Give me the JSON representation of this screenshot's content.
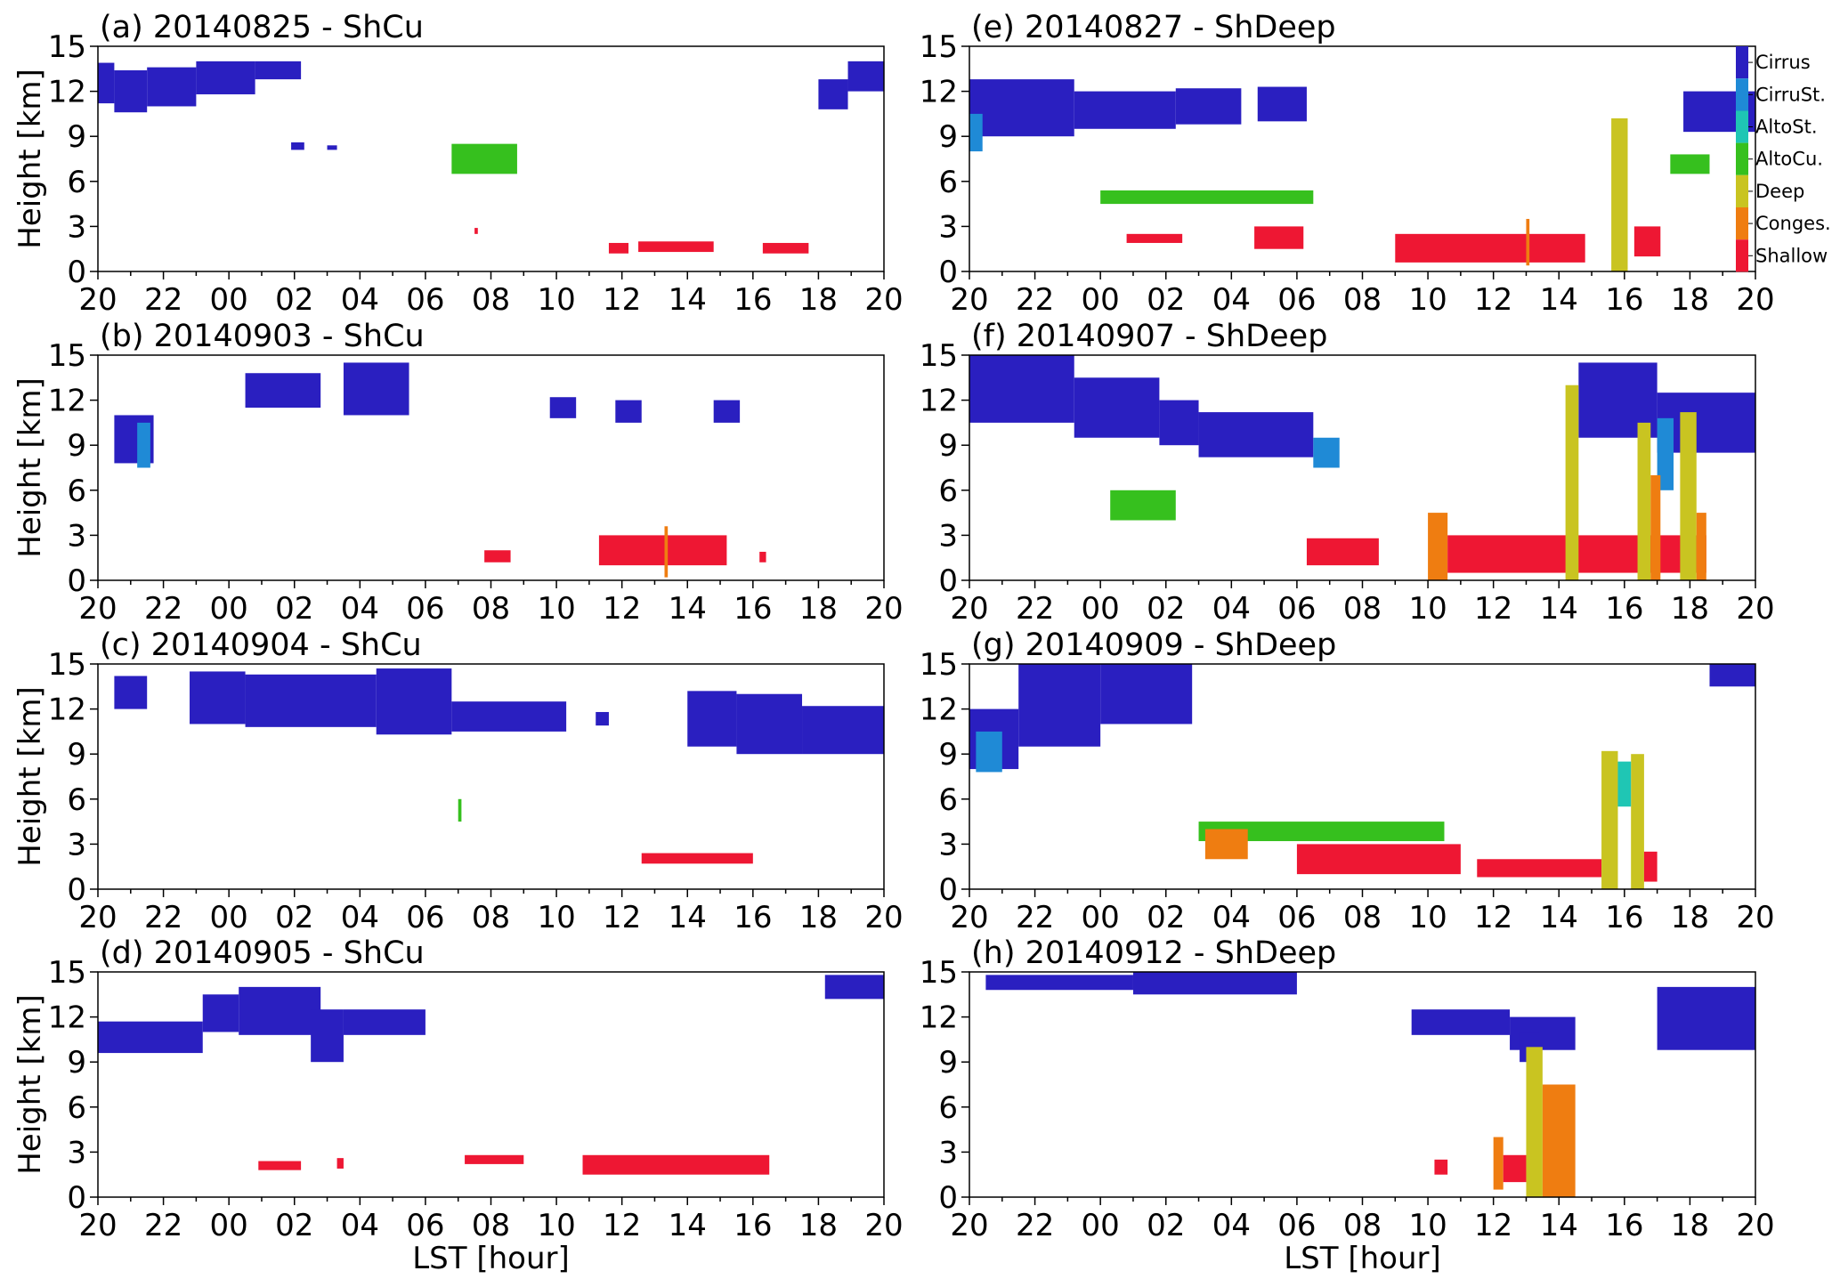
{
  "figure": {
    "ylabel": "Height [km]",
    "xlabel": "LST [hour]",
    "legend_position": "right of panel (e)"
  },
  "chart_data": [
    {
      "type": "heatmap",
      "id": "a",
      "title": "(a) 20140825 - ShCu",
      "ylabel": "Height [km]",
      "xlabel": "",
      "ylim": [
        0,
        15
      ],
      "yticks": [
        0,
        3,
        6,
        9,
        12,
        15
      ],
      "xlim": [
        0,
        24
      ],
      "xticks": [
        "20",
        "22",
        "00",
        "02",
        "04",
        "06",
        "08",
        "10",
        "12",
        "14",
        "16",
        "18",
        "20"
      ],
      "grid": false,
      "cells": [
        {
          "class": "Cirrus",
          "t0": 0.0,
          "t1": 0.5,
          "z0": 11.2,
          "z1": 13.9
        },
        {
          "class": "Cirrus",
          "t0": 0.5,
          "t1": 1.5,
          "z0": 10.6,
          "z1": 13.4
        },
        {
          "class": "Cirrus",
          "t0": 1.5,
          "t1": 3.0,
          "z0": 11.0,
          "z1": 13.6
        },
        {
          "class": "Cirrus",
          "t0": 3.0,
          "t1": 4.8,
          "z0": 11.8,
          "z1": 14.0
        },
        {
          "class": "Cirrus",
          "t0": 4.8,
          "t1": 6.2,
          "z0": 12.8,
          "z1": 14.0
        },
        {
          "class": "Cirrus",
          "t0": 5.9,
          "t1": 6.3,
          "z0": 8.1,
          "z1": 8.6
        },
        {
          "class": "Cirrus",
          "t0": 7.0,
          "t1": 7.3,
          "z0": 8.1,
          "z1": 8.4
        },
        {
          "class": "Cirrus",
          "t0": 22.0,
          "t1": 22.9,
          "z0": 10.8,
          "z1": 12.8
        },
        {
          "class": "Cirrus",
          "t0": 22.9,
          "t1": 24.0,
          "z0": 12.0,
          "z1": 14.0
        },
        {
          "class": "AltoCu.",
          "t0": 10.8,
          "t1": 12.8,
          "z0": 6.5,
          "z1": 8.5
        },
        {
          "class": "Shallow",
          "t0": 15.6,
          "t1": 16.2,
          "z0": 1.2,
          "z1": 1.9
        },
        {
          "class": "Shallow",
          "t0": 16.5,
          "t1": 18.8,
          "z0": 1.3,
          "z1": 2.0
        },
        {
          "class": "Shallow",
          "t0": 20.3,
          "t1": 21.7,
          "z0": 1.2,
          "z1": 1.9
        },
        {
          "class": "Shallow",
          "t0": 11.5,
          "t1": 11.6,
          "z0": 2.5,
          "z1": 2.9
        }
      ]
    },
    {
      "type": "heatmap",
      "id": "b",
      "title": "(b) 20140903 - ShCu",
      "ylabel": "Height [km]",
      "xlabel": "",
      "ylim": [
        0,
        15
      ],
      "yticks": [
        0,
        3,
        6,
        9,
        12,
        15
      ],
      "xlim": [
        0,
        24
      ],
      "xticks": [
        "20",
        "22",
        "00",
        "02",
        "04",
        "06",
        "08",
        "10",
        "12",
        "14",
        "16",
        "18",
        "20"
      ],
      "grid": false,
      "cells": [
        {
          "class": "Cirrus",
          "t0": 0.5,
          "t1": 1.7,
          "z0": 7.8,
          "z1": 11.0
        },
        {
          "class": "CirruSt.",
          "t0": 1.2,
          "t1": 1.6,
          "z0": 7.5,
          "z1": 10.5
        },
        {
          "class": "Cirrus",
          "t0": 4.5,
          "t1": 6.8,
          "z0": 11.5,
          "z1": 13.8
        },
        {
          "class": "Cirrus",
          "t0": 7.5,
          "t1": 9.5,
          "z0": 11.0,
          "z1": 14.5
        },
        {
          "class": "Cirrus",
          "t0": 13.8,
          "t1": 14.6,
          "z0": 10.8,
          "z1": 12.2
        },
        {
          "class": "Cirrus",
          "t0": 15.8,
          "t1": 16.6,
          "z0": 10.5,
          "z1": 12.0
        },
        {
          "class": "Cirrus",
          "t0": 18.8,
          "t1": 19.6,
          "z0": 10.5,
          "z1": 12.0
        },
        {
          "class": "Shallow",
          "t0": 11.8,
          "t1": 12.6,
          "z0": 1.2,
          "z1": 2.0
        },
        {
          "class": "Shallow",
          "t0": 15.3,
          "t1": 19.2,
          "z0": 1.0,
          "z1": 3.0
        },
        {
          "class": "Conges.",
          "t0": 17.3,
          "t1": 17.4,
          "z0": 0.2,
          "z1": 3.6
        },
        {
          "class": "Shallow",
          "t0": 20.2,
          "t1": 20.4,
          "z0": 1.2,
          "z1": 1.9
        }
      ]
    },
    {
      "type": "heatmap",
      "id": "c",
      "title": "(c) 20140904 - ShCu",
      "ylabel": "Height [km]",
      "xlabel": "",
      "ylim": [
        0,
        15
      ],
      "yticks": [
        0,
        3,
        6,
        9,
        12,
        15
      ],
      "xlim": [
        0,
        24
      ],
      "xticks": [
        "20",
        "22",
        "00",
        "02",
        "04",
        "06",
        "08",
        "10",
        "12",
        "14",
        "16",
        "18",
        "20"
      ],
      "grid": false,
      "cells": [
        {
          "class": "Cirrus",
          "t0": 0.5,
          "t1": 1.5,
          "z0": 12.0,
          "z1": 14.2
        },
        {
          "class": "Cirrus",
          "t0": 2.8,
          "t1": 4.5,
          "z0": 11.0,
          "z1": 14.5
        },
        {
          "class": "Cirrus",
          "t0": 4.5,
          "t1": 8.5,
          "z0": 10.8,
          "z1": 14.3
        },
        {
          "class": "Cirrus",
          "t0": 8.5,
          "t1": 10.8,
          "z0": 10.3,
          "z1": 14.7
        },
        {
          "class": "Cirrus",
          "t0": 10.8,
          "t1": 14.3,
          "z0": 10.5,
          "z1": 12.5
        },
        {
          "class": "Cirrus",
          "t0": 15.2,
          "t1": 15.6,
          "z0": 10.9,
          "z1": 11.8
        },
        {
          "class": "Cirrus",
          "t0": 18.0,
          "t1": 19.5,
          "z0": 9.5,
          "z1": 13.2
        },
        {
          "class": "Cirrus",
          "t0": 19.5,
          "t1": 21.5,
          "z0": 9.0,
          "z1": 13.0
        },
        {
          "class": "Cirrus",
          "t0": 21.5,
          "t1": 24.0,
          "z0": 9.0,
          "z1": 12.2
        },
        {
          "class": "Shallow",
          "t0": 16.6,
          "t1": 20.0,
          "z0": 1.7,
          "z1": 2.4
        },
        {
          "class": "AltoCu.",
          "t0": 11.0,
          "t1": 11.1,
          "z0": 4.5,
          "z1": 6.0
        }
      ]
    },
    {
      "type": "heatmap",
      "id": "d",
      "title": "(d) 20140905 - ShCu",
      "ylabel": "Height [km]",
      "xlabel": "LST [hour]",
      "ylim": [
        0,
        15
      ],
      "yticks": [
        0,
        3,
        6,
        9,
        12,
        15
      ],
      "xlim": [
        0,
        24
      ],
      "xticks": [
        "20",
        "22",
        "00",
        "02",
        "04",
        "06",
        "08",
        "10",
        "12",
        "14",
        "16",
        "18",
        "20"
      ],
      "grid": false,
      "cells": [
        {
          "class": "Cirrus",
          "t0": 0.0,
          "t1": 3.2,
          "z0": 9.6,
          "z1": 11.7
        },
        {
          "class": "Cirrus",
          "t0": 3.2,
          "t1": 4.3,
          "z0": 11.0,
          "z1": 13.5
        },
        {
          "class": "Cirrus",
          "t0": 4.3,
          "t1": 6.8,
          "z0": 10.8,
          "z1": 14.0
        },
        {
          "class": "Cirrus",
          "t0": 6.5,
          "t1": 7.5,
          "z0": 9.0,
          "z1": 12.5
        },
        {
          "class": "Cirrus",
          "t0": 7.5,
          "t1": 10.0,
          "z0": 10.8,
          "z1": 12.5
        },
        {
          "class": "Cirrus",
          "t0": 22.2,
          "t1": 24.0,
          "z0": 13.2,
          "z1": 14.8
        },
        {
          "class": "Shallow",
          "t0": 4.9,
          "t1": 6.2,
          "z0": 1.8,
          "z1": 2.4
        },
        {
          "class": "Shallow",
          "t0": 7.3,
          "t1": 7.5,
          "z0": 1.9,
          "z1": 2.6
        },
        {
          "class": "Shallow",
          "t0": 11.2,
          "t1": 13.0,
          "z0": 2.2,
          "z1": 2.8
        },
        {
          "class": "Shallow",
          "t0": 14.8,
          "t1": 20.5,
          "z0": 1.5,
          "z1": 2.8
        }
      ]
    },
    {
      "type": "heatmap",
      "id": "e",
      "title": "(e) 20140827 - ShDeep",
      "ylabel": "",
      "xlabel": "",
      "ylim": [
        0,
        15
      ],
      "yticks": [
        0,
        3,
        6,
        9,
        12,
        15
      ],
      "xlim": [
        0,
        24
      ],
      "xticks": [
        "20",
        "22",
        "00",
        "02",
        "04",
        "06",
        "08",
        "10",
        "12",
        "14",
        "16",
        "18",
        "20"
      ],
      "grid": false,
      "legend": [
        "Cirrus",
        "CirruSt.",
        "AltoSt.",
        "AltoCu.",
        "Deep",
        "Conges.",
        "Shallow"
      ],
      "cells": [
        {
          "class": "Cirrus",
          "t0": 0.0,
          "t1": 3.2,
          "z0": 9.0,
          "z1": 12.8
        },
        {
          "class": "CirruSt.",
          "t0": 0.0,
          "t1": 0.4,
          "z0": 8.0,
          "z1": 10.5
        },
        {
          "class": "Cirrus",
          "t0": 3.2,
          "t1": 6.3,
          "z0": 9.5,
          "z1": 12.0
        },
        {
          "class": "Cirrus",
          "t0": 6.3,
          "t1": 8.3,
          "z0": 9.8,
          "z1": 12.2
        },
        {
          "class": "Cirrus",
          "t0": 8.8,
          "t1": 10.3,
          "z0": 10.0,
          "z1": 12.3
        },
        {
          "class": "Cirrus",
          "t0": 21.8,
          "t1": 24.0,
          "z0": 9.3,
          "z1": 12.0
        },
        {
          "class": "AltoCu.",
          "t0": 4.0,
          "t1": 10.5,
          "z0": 4.5,
          "z1": 5.4
        },
        {
          "class": "AltoCu.",
          "t0": 21.4,
          "t1": 22.6,
          "z0": 6.5,
          "z1": 7.8
        },
        {
          "class": "Shallow",
          "t0": 4.8,
          "t1": 6.5,
          "z0": 1.9,
          "z1": 2.5
        },
        {
          "class": "Shallow",
          "t0": 8.7,
          "t1": 10.2,
          "z0": 1.5,
          "z1": 3.0
        },
        {
          "class": "Shallow",
          "t0": 13.0,
          "t1": 18.8,
          "z0": 0.6,
          "z1": 2.5
        },
        {
          "class": "Conges.",
          "t0": 17.0,
          "t1": 17.1,
          "z0": 0.4,
          "z1": 3.5
        },
        {
          "class": "Deep",
          "t0": 19.6,
          "t1": 20.1,
          "z0": 0.0,
          "z1": 10.2
        },
        {
          "class": "Shallow",
          "t0": 20.3,
          "t1": 21.1,
          "z0": 1.0,
          "z1": 3.0
        }
      ]
    },
    {
      "type": "heatmap",
      "id": "f",
      "title": "(f) 20140907 - ShDeep",
      "ylabel": "",
      "xlabel": "",
      "ylim": [
        0,
        15
      ],
      "yticks": [
        0,
        3,
        6,
        9,
        12,
        15
      ],
      "xlim": [
        0,
        24
      ],
      "xticks": [
        "20",
        "22",
        "00",
        "02",
        "04",
        "06",
        "08",
        "10",
        "12",
        "14",
        "16",
        "18",
        "20"
      ],
      "grid": false,
      "cells": [
        {
          "class": "Cirrus",
          "t0": 0.0,
          "t1": 3.2,
          "z0": 10.5,
          "z1": 15.0
        },
        {
          "class": "Cirrus",
          "t0": 3.2,
          "t1": 5.8,
          "z0": 9.5,
          "z1": 13.5
        },
        {
          "class": "Cirrus",
          "t0": 5.8,
          "t1": 7.0,
          "z0": 9.0,
          "z1": 12.0
        },
        {
          "class": "Cirrus",
          "t0": 7.0,
          "t1": 10.5,
          "z0": 8.2,
          "z1": 11.2
        },
        {
          "class": "CirruSt.",
          "t0": 10.5,
          "t1": 11.3,
          "z0": 7.5,
          "z1": 9.5
        },
        {
          "class": "Cirrus",
          "t0": 18.6,
          "t1": 21.0,
          "z0": 9.5,
          "z1": 14.5
        },
        {
          "class": "Cirrus",
          "t0": 21.0,
          "t1": 24.0,
          "z0": 8.5,
          "z1": 12.5
        },
        {
          "class": "CirruSt.",
          "t0": 21.0,
          "t1": 21.5,
          "z0": 6.0,
          "z1": 10.8
        },
        {
          "class": "AltoCu.",
          "t0": 4.3,
          "t1": 6.3,
          "z0": 4.0,
          "z1": 6.0
        },
        {
          "class": "Shallow",
          "t0": 10.3,
          "t1": 12.5,
          "z0": 1.0,
          "z1": 2.8
        },
        {
          "class": "Conges.",
          "t0": 14.0,
          "t1": 14.6,
          "z0": 0.0,
          "z1": 4.5
        },
        {
          "class": "Shallow",
          "t0": 14.6,
          "t1": 22.5,
          "z0": 0.5,
          "z1": 3.0
        },
        {
          "class": "Deep",
          "t0": 18.2,
          "t1": 18.6,
          "z0": 0.0,
          "z1": 13.0
        },
        {
          "class": "Deep",
          "t0": 20.4,
          "t1": 20.8,
          "z0": 0.0,
          "z1": 10.5
        },
        {
          "class": "Conges.",
          "t0": 20.8,
          "t1": 21.1,
          "z0": 0.0,
          "z1": 7.0
        },
        {
          "class": "Deep",
          "t0": 21.7,
          "t1": 22.2,
          "z0": 0.0,
          "z1": 11.2
        },
        {
          "class": "Conges.",
          "t0": 22.2,
          "t1": 22.5,
          "z0": 0.0,
          "z1": 4.5
        }
      ]
    },
    {
      "type": "heatmap",
      "id": "g",
      "title": "(g) 20140909 - ShDeep",
      "ylabel": "",
      "xlabel": "",
      "ylim": [
        0,
        15
      ],
      "yticks": [
        0,
        3,
        6,
        9,
        12,
        15
      ],
      "xlim": [
        0,
        24
      ],
      "xticks": [
        "20",
        "22",
        "00",
        "02",
        "04",
        "06",
        "08",
        "10",
        "12",
        "14",
        "16",
        "18",
        "20"
      ],
      "grid": false,
      "cells": [
        {
          "class": "Cirrus",
          "t0": 0.0,
          "t1": 1.5,
          "z0": 8.0,
          "z1": 12.0
        },
        {
          "class": "CirruSt.",
          "t0": 0.2,
          "t1": 1.0,
          "z0": 7.8,
          "z1": 10.5
        },
        {
          "class": "Cirrus",
          "t0": 1.5,
          "t1": 4.0,
          "z0": 9.5,
          "z1": 15.0
        },
        {
          "class": "Cirrus",
          "t0": 4.0,
          "t1": 6.8,
          "z0": 11.0,
          "z1": 15.0
        },
        {
          "class": "Cirrus",
          "t0": 22.6,
          "t1": 24.0,
          "z0": 13.5,
          "z1": 15.0
        },
        {
          "class": "AltoCu.",
          "t0": 7.0,
          "t1": 14.5,
          "z0": 3.2,
          "z1": 4.5
        },
        {
          "class": "Conges.",
          "t0": 7.2,
          "t1": 8.5,
          "z0": 2.0,
          "z1": 4.0
        },
        {
          "class": "Shallow",
          "t0": 10.0,
          "t1": 15.0,
          "z0": 1.0,
          "z1": 3.0
        },
        {
          "class": "Shallow",
          "t0": 15.5,
          "t1": 19.3,
          "z0": 0.8,
          "z1": 2.0
        },
        {
          "class": "Deep",
          "t0": 19.3,
          "t1": 19.8,
          "z0": 0.0,
          "z1": 9.2
        },
        {
          "class": "Deep",
          "t0": 20.2,
          "t1": 20.6,
          "z0": 0.0,
          "z1": 9.0
        },
        {
          "class": "AltoSt.",
          "t0": 19.8,
          "t1": 20.2,
          "z0": 5.5,
          "z1": 8.5
        },
        {
          "class": "Shallow",
          "t0": 20.6,
          "t1": 21.0,
          "z0": 0.5,
          "z1": 2.5
        }
      ]
    },
    {
      "type": "heatmap",
      "id": "h",
      "title": "(h) 20140912 - ShDeep",
      "ylabel": "",
      "xlabel": "LST [hour]",
      "ylim": [
        0,
        15
      ],
      "yticks": [
        0,
        3,
        6,
        9,
        12,
        15
      ],
      "xlim": [
        0,
        24
      ],
      "xticks": [
        "20",
        "22",
        "00",
        "02",
        "04",
        "06",
        "08",
        "10",
        "12",
        "14",
        "16",
        "18",
        "20"
      ],
      "grid": false,
      "cells": [
        {
          "class": "Cirrus",
          "t0": 0.5,
          "t1": 5.0,
          "z0": 13.8,
          "z1": 14.8
        },
        {
          "class": "Cirrus",
          "t0": 5.0,
          "t1": 10.0,
          "z0": 13.5,
          "z1": 15.0
        },
        {
          "class": "Cirrus",
          "t0": 13.5,
          "t1": 16.5,
          "z0": 10.8,
          "z1": 12.5
        },
        {
          "class": "Cirrus",
          "t0": 16.5,
          "t1": 18.5,
          "z0": 9.8,
          "z1": 12.0
        },
        {
          "class": "Cirrus",
          "t0": 21.0,
          "t1": 24.0,
          "z0": 9.8,
          "z1": 14.0
        },
        {
          "class": "Cirrus",
          "t0": 16.8,
          "t1": 17.4,
          "z0": 9.0,
          "z1": 11.0
        },
        {
          "class": "Conges.",
          "t0": 16.0,
          "t1": 16.3,
          "z0": 0.5,
          "z1": 4.0
        },
        {
          "class": "Shallow",
          "t0": 16.3,
          "t1": 17.0,
          "z0": 1.0,
          "z1": 2.8
        },
        {
          "class": "Deep",
          "t0": 17.0,
          "t1": 17.5,
          "z0": 0.0,
          "z1": 10.0
        },
        {
          "class": "Conges.",
          "t0": 17.5,
          "t1": 18.5,
          "z0": 0.0,
          "z1": 7.5
        },
        {
          "class": "Shallow",
          "t0": 14.2,
          "t1": 14.6,
          "z0": 1.5,
          "z1": 2.5
        }
      ]
    }
  ],
  "legend": {
    "colors": {
      "Cirrus": "#2a1fc0",
      "CirruSt.": "#1f8ad6",
      "AltoSt.": "#1fc6b4",
      "AltoCu.": "#36c01e",
      "Deep": "#c9c421",
      "Conges.": "#ef7d11",
      "Shallow": "#ee1733"
    }
  }
}
